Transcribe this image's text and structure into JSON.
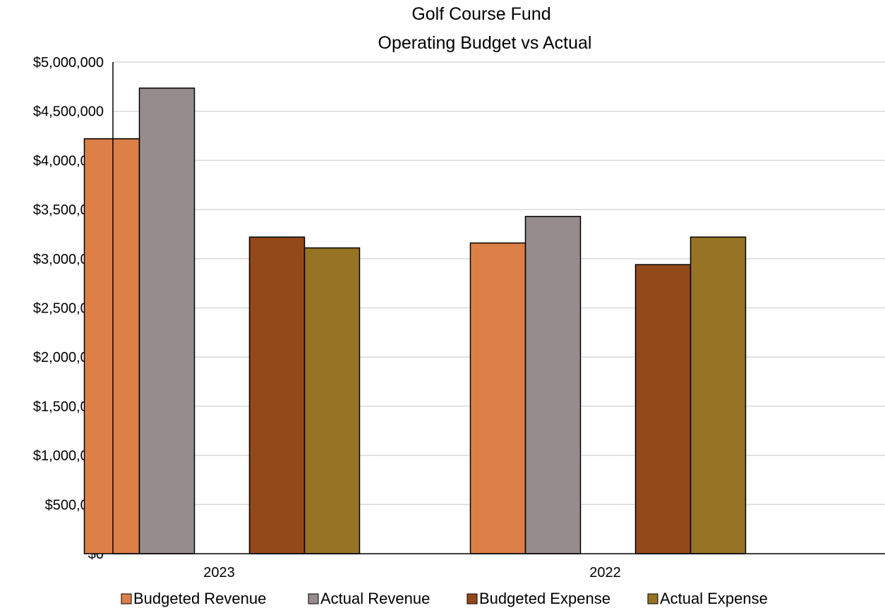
{
  "chart_data": {
    "type": "bar",
    "title": "Golf Course Fund",
    "subtitle": "Operating Budget vs Actual",
    "xlabel": "",
    "ylabel": "",
    "ylim": [
      0,
      5000000
    ],
    "y_ticks": [
      "$0",
      "$500,000",
      "$1,000,000",
      "$1,500,000",
      "$2,000,000",
      "$2,500,000",
      "$3,000,000",
      "$3,500,000",
      "$4,000,000",
      "$4,500,000",
      "$5,000,000"
    ],
    "y_tick_values": [
      0,
      500000,
      1000000,
      1500000,
      2000000,
      2500000,
      3000000,
      3500000,
      4000000,
      4500000,
      5000000
    ],
    "grid": true,
    "legend_position": "bottom",
    "categories": [
      "2023",
      "2022"
    ],
    "series": [
      {
        "name": "Budgeted Revenue",
        "color": "#dd8047",
        "values": [
          4220000,
          3160000
        ]
      },
      {
        "name": "Actual Revenue",
        "color": "#968c8c",
        "values": [
          4735000,
          3430000
        ]
      },
      {
        "name": "Budgeted Expense",
        "color": "#94491b",
        "values": [
          3220000,
          2940000
        ]
      },
      {
        "name": "Actual Expense",
        "color": "#967325",
        "values": [
          3110000,
          3220000
        ]
      }
    ]
  }
}
